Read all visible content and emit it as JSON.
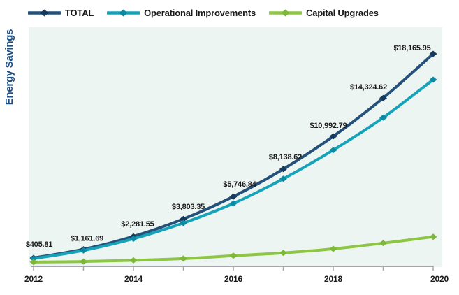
{
  "y_axis_title": "Energy Savings",
  "legend": {
    "items": [
      {
        "label": "TOTAL",
        "color": "#24507A",
        "marker_color": "#16395C"
      },
      {
        "label": "Operational Improvements",
        "color": "#16A3BA",
        "marker_color": "#0B8AA4"
      },
      {
        "label": "Capital Upgrades",
        "color": "#8DC642",
        "marker_color": "#7DB838"
      }
    ]
  },
  "chart_data": {
    "type": "line",
    "title": "",
    "xlabel": "",
    "ylabel": "Energy Savings",
    "x": [
      2012,
      2013,
      2014,
      2015,
      2016,
      2017,
      2018,
      2019,
      2020
    ],
    "x_axis_tick_labels": [
      "2012",
      "2014",
      "2016",
      "2018",
      "2020"
    ],
    "ylim": [
      0,
      19000
    ],
    "grid": false,
    "legend_position": "top",
    "plot_background": "#EDF5F2",
    "axis_color": "#A5A7AA",
    "series": [
      {
        "name": "TOTAL",
        "color": "#24507A",
        "marker_color": "#16395C",
        "marker": "diamond",
        "values": [
          405.81,
          1161.69,
          2281.55,
          3803.35,
          5746.84,
          8138.62,
          10992.79,
          14324.62,
          18165.95
        ],
        "point_labels": [
          "$405.81",
          "$1,161.69",
          "$2,281.55",
          "$3,803.35",
          "$5,746.84",
          "$8,138.62",
          "$10,992.79",
          "$14,324.62",
          "$18,165.95"
        ]
      },
      {
        "name": "Operational Improvements",
        "color": "#16A3BA",
        "marker_color": "#0B8AA4",
        "marker": "diamond",
        "values": [
          355,
          1060,
          2080,
          3450,
          5150,
          7290,
          9790,
          12620,
          15920
        ]
      },
      {
        "name": "Capital Upgrades",
        "color": "#8DC642",
        "marker_color": "#7DB838",
        "marker": "diamond",
        "values": [
          50,
          100,
          200,
          350,
          600,
          850,
          1200,
          1700,
          2250
        ]
      }
    ]
  }
}
